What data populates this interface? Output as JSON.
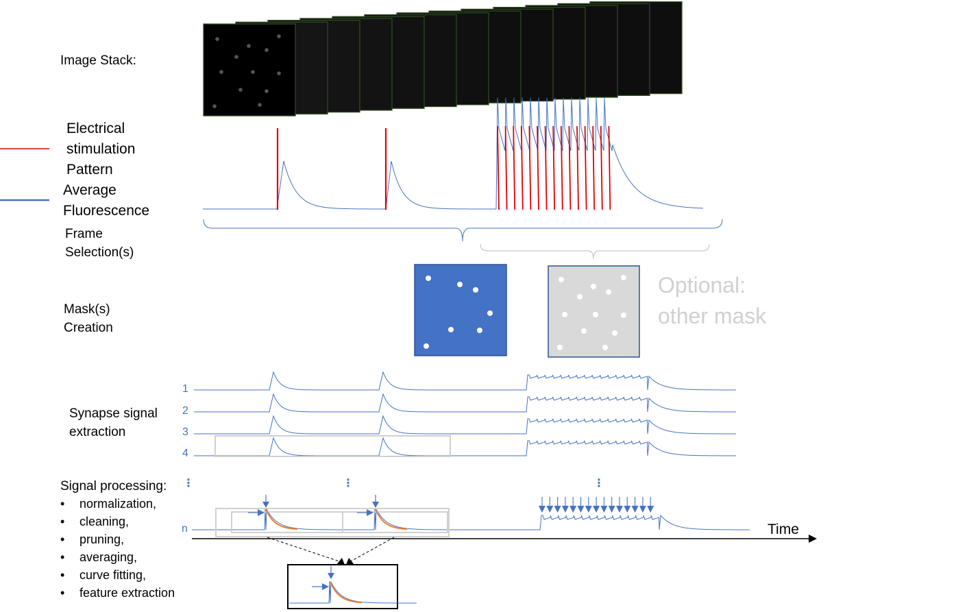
{
  "labels": {
    "image_stack": "Image Stack:",
    "legend_red_1": "Electrical",
    "legend_red_2": "stimulation",
    "legend_red_3": "Pattern",
    "legend_blue_1": "Average",
    "legend_blue_2": "Fluorescence",
    "frame_sel_1": "Frame",
    "frame_sel_2": "Selection(s)",
    "mask_1": "Mask(s)",
    "mask_2": "Creation",
    "optional_1": "Optional:",
    "optional_2": "other mask",
    "synapse_1": "Synapse signal",
    "synapse_2": "extraction",
    "signal_processing": "Signal processing:",
    "time": "Time"
  },
  "row_numbers": [
    "1",
    "2",
    "3",
    "4",
    "n"
  ],
  "ellipsis": "⋮",
  "processing_steps": [
    "normalization,",
    "cleaning,",
    "pruning,",
    "averaging,",
    "curve fitting,",
    "feature extraction"
  ],
  "colors": {
    "stimulation": "#e00000",
    "fluorescence": "#4472c4",
    "fit_curve": "#ed7d31",
    "mask_blue": "#4472c4",
    "mask_gray": "#d9d9d9",
    "frame_border": "#2e4a1e",
    "bracket": "#4472c4",
    "bracket_light": "#c8c8c8"
  },
  "icons": {
    "bullet": "•",
    "arrow": "arrow-right-icon"
  }
}
